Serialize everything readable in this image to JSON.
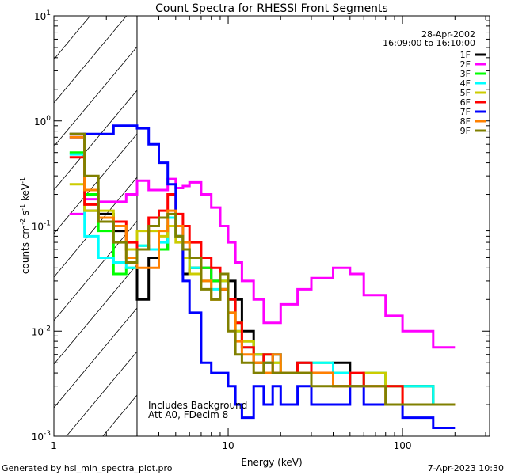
{
  "chart_data": {
    "type": "line",
    "title": "Count Spectra for RHESSI Front Segments",
    "xlabel": "Energy (keV)",
    "ylabel": "counts cm-2 s-1 keV-1",
    "xscale": "log",
    "yscale": "log",
    "xlim": [
      1,
      316
    ],
    "ylim": [
      0.001,
      10
    ],
    "x_tick_labels": [
      "1",
      "10",
      "100"
    ],
    "x_tick_values": [
      1,
      10,
      100
    ],
    "y_tick_labels": [
      {
        "base": "10",
        "exp": "1"
      },
      {
        "base": "10",
        "exp": "0"
      },
      {
        "base": "10",
        "exp": "-1"
      },
      {
        "base": "10",
        "exp": "-2"
      },
      {
        "base": "10",
        "exp": "-3"
      }
    ],
    "y_tick_values": [
      10,
      1,
      0.1,
      0.01,
      0.001
    ],
    "legend_position": "top-right",
    "date": "28-Apr-2002",
    "time_range": "16:09:00 to 16:10:00",
    "annotations": [
      "Includes Background",
      "Att A0, FDecim 8"
    ],
    "hatched_region_keV": [
      1,
      3
    ],
    "energy_edges": [
      1.23,
      1.5,
      1.8,
      2.2,
      2.6,
      3.0,
      3.5,
      4.0,
      4.5,
      5.0,
      5.5,
      6.0,
      7.0,
      8.0,
      9.0,
      10,
      11,
      12,
      14,
      16,
      18,
      20,
      25,
      30,
      40,
      50,
      60,
      80,
      100,
      150,
      200,
      300
    ],
    "series": [
      {
        "name": "1F",
        "color": "#000000",
        "values": [
          0.75,
          0.14,
          0.13,
          0.09,
          0.06,
          0.02,
          0.05,
          0.06,
          0.1,
          0.08,
          0.035,
          0.04,
          0.04,
          0.03,
          0.025,
          0.03,
          0.02,
          0.01,
          0.006,
          0.005,
          0.006,
          0.004,
          0.005,
          0.004,
          0.005,
          0.003,
          0.004,
          0.003,
          0.003,
          0.002
        ]
      },
      {
        "name": "2F",
        "color": "#ff00ff",
        "values": [
          0.13,
          0.18,
          0.17,
          0.17,
          0.2,
          0.27,
          0.22,
          0.22,
          0.28,
          0.23,
          0.24,
          0.26,
          0.2,
          0.15,
          0.1,
          0.07,
          0.045,
          0.03,
          0.02,
          0.012,
          0.012,
          0.018,
          0.025,
          0.032,
          0.04,
          0.035,
          0.022,
          0.014,
          0.01,
          0.007
        ]
      },
      {
        "name": "3F",
        "color": "#00ff00",
        "values": [
          0.5,
          0.2,
          0.09,
          0.035,
          0.04,
          0.065,
          0.06,
          0.06,
          0.1,
          0.08,
          0.06,
          0.04,
          0.04,
          0.03,
          0.03,
          0.02,
          0.012,
          0.008,
          0.005,
          0.006,
          0.005,
          0.004,
          0.004,
          0.005,
          0.004,
          0.003,
          0.004,
          0.003,
          0.003,
          0.002
        ]
      },
      {
        "name": "4F",
        "color": "#00ffff",
        "values": [
          0.48,
          0.08,
          0.05,
          0.045,
          0.04,
          0.065,
          0.06,
          0.07,
          0.12,
          0.08,
          0.06,
          0.04,
          0.03,
          0.025,
          0.03,
          0.02,
          0.01,
          0.007,
          0.006,
          0.005,
          0.006,
          0.004,
          0.004,
          0.005,
          0.004,
          0.003,
          0.004,
          0.003,
          0.003,
          0.002
        ]
      },
      {
        "name": "5F",
        "color": "#cccc00",
        "values": [
          0.25,
          0.14,
          0.14,
          0.1,
          0.06,
          0.09,
          0.09,
          0.08,
          0.1,
          0.07,
          0.05,
          0.035,
          0.03,
          0.02,
          0.03,
          0.015,
          0.01,
          0.008,
          0.006,
          0.004,
          0.005,
          0.004,
          0.004,
          0.004,
          0.003,
          0.003,
          0.004,
          0.003,
          0.002,
          0.002
        ]
      },
      {
        "name": "6F",
        "color": "#ff0000",
        "values": [
          0.45,
          0.16,
          0.11,
          0.11,
          0.07,
          0.06,
          0.12,
          0.14,
          0.2,
          0.13,
          0.1,
          0.07,
          0.05,
          0.04,
          0.035,
          0.02,
          0.012,
          0.007,
          0.005,
          0.006,
          0.004,
          0.004,
          0.005,
          0.004,
          0.003,
          0.004,
          0.003,
          0.003,
          0.002,
          0.002
        ]
      },
      {
        "name": "7F",
        "color": "#0000ff",
        "values": [
          0.7,
          0.75,
          0.75,
          0.9,
          0.9,
          0.85,
          0.6,
          0.4,
          0.25,
          0.1,
          0.03,
          0.015,
          0.005,
          0.004,
          0.004,
          0.003,
          0.002,
          0.0015,
          0.003,
          0.002,
          0.003,
          0.002,
          0.003,
          0.002,
          0.002,
          0.003,
          0.002,
          0.002,
          0.0015,
          0.0012
        ]
      },
      {
        "name": "8F",
        "color": "#ff8000",
        "values": [
          0.7,
          0.22,
          0.12,
          0.1,
          0.05,
          0.04,
          0.04,
          0.09,
          0.14,
          0.1,
          0.07,
          0.05,
          0.03,
          0.02,
          0.025,
          0.015,
          0.008,
          0.006,
          0.005,
          0.004,
          0.006,
          0.004,
          0.004,
          0.004,
          0.003,
          0.003,
          0.003,
          0.002,
          0.002,
          0.002
        ]
      },
      {
        "name": "9F",
        "color": "#808000",
        "values": [
          0.75,
          0.3,
          0.11,
          0.07,
          0.045,
          0.06,
          0.1,
          0.12,
          0.13,
          0.08,
          0.06,
          0.05,
          0.025,
          0.02,
          0.035,
          0.01,
          0.006,
          0.005,
          0.004,
          0.005,
          0.004,
          0.004,
          0.004,
          0.003,
          0.003,
          0.003,
          0.003,
          0.002,
          0.002,
          0.002
        ]
      }
    ]
  },
  "footer": {
    "generated_by": "Generated by hsi_min_spectra_plot.pro",
    "timestamp": "7-Apr-2023 10:30"
  }
}
